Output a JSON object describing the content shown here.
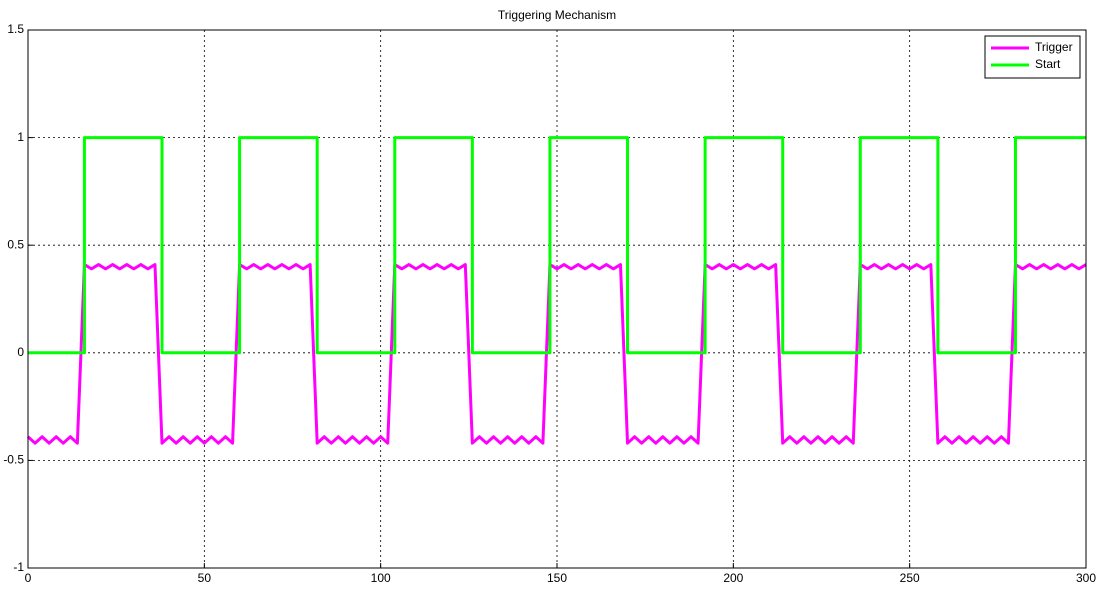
{
  "chart_data": {
    "type": "line",
    "title": "Triggering Mechanism",
    "xlim": [
      0,
      300
    ],
    "ylim": [
      -1,
      1.5
    ],
    "xticks": [
      0,
      50,
      100,
      150,
      200,
      250,
      300
    ],
    "yticks": [
      -1,
      -0.5,
      0,
      0.5,
      1,
      1.5
    ],
    "grid": true,
    "legend": "upper right",
    "series": [
      {
        "name": "Trigger",
        "color": "#ff00ff",
        "x": [
          0,
          2,
          4,
          6,
          8,
          10,
          12,
          14,
          16,
          18,
          20,
          22,
          24,
          26,
          28,
          30,
          32,
          34,
          36,
          38,
          40,
          42,
          44,
          46,
          48,
          50,
          52,
          54,
          56,
          58,
          60,
          62,
          64,
          66,
          68,
          70,
          72,
          74,
          76,
          78,
          80,
          82,
          84,
          86,
          88,
          90,
          92,
          94,
          96,
          98,
          100,
          102,
          104,
          106,
          108,
          110,
          112,
          114,
          116,
          118,
          120,
          122,
          124,
          126,
          128,
          130,
          132,
          134,
          136,
          138,
          140,
          142,
          144,
          146,
          148,
          150,
          152,
          154,
          156,
          158,
          160,
          162,
          164,
          166,
          168,
          170,
          172,
          174,
          176,
          178,
          180,
          182,
          184,
          186,
          188,
          190,
          192,
          194,
          196,
          198,
          200,
          202,
          204,
          206,
          208,
          210,
          212,
          214,
          216,
          218,
          220,
          222,
          224,
          226,
          228,
          230,
          232,
          234,
          236,
          238,
          240,
          242,
          244,
          246,
          248,
          250,
          252,
          254,
          256,
          258,
          260,
          262,
          264,
          266,
          268,
          270,
          272,
          274,
          276,
          278,
          280,
          282,
          284,
          286,
          288,
          290,
          292,
          294,
          296,
          298,
          300
        ],
        "values": [
          -0.39,
          -0.42,
          -0.39,
          -0.42,
          -0.39,
          -0.42,
          -0.39,
          -0.42,
          0.41,
          0.39,
          0.41,
          0.39,
          0.41,
          0.39,
          0.41,
          0.39,
          0.41,
          0.39,
          0.41,
          -0.42,
          -0.39,
          -0.42,
          -0.39,
          -0.42,
          -0.39,
          -0.42,
          -0.39,
          -0.42,
          -0.39,
          -0.42,
          0.41,
          0.39,
          0.41,
          0.39,
          0.41,
          0.39,
          0.41,
          0.39,
          0.41,
          0.39,
          0.41,
          -0.42,
          -0.39,
          -0.42,
          -0.39,
          -0.42,
          -0.39,
          -0.42,
          -0.39,
          -0.42,
          -0.39,
          -0.42,
          0.41,
          0.39,
          0.41,
          0.39,
          0.41,
          0.39,
          0.41,
          0.39,
          0.41,
          0.39,
          0.41,
          -0.42,
          -0.39,
          -0.42,
          -0.39,
          -0.42,
          -0.39,
          -0.42,
          -0.39,
          -0.42,
          -0.39,
          -0.42,
          0.41,
          0.39,
          0.41,
          0.39,
          0.41,
          0.39,
          0.41,
          0.39,
          0.41,
          0.39,
          0.41,
          -0.42,
          -0.39,
          -0.42,
          -0.39,
          -0.42,
          -0.39,
          -0.42,
          -0.39,
          -0.42,
          -0.39,
          -0.42,
          0.41,
          0.39,
          0.41,
          0.39,
          0.41,
          0.39,
          0.41,
          0.39,
          0.41,
          0.39,
          0.41,
          -0.42,
          -0.39,
          -0.42,
          -0.39,
          -0.42,
          -0.39,
          -0.42,
          -0.39,
          -0.42,
          -0.39,
          -0.42,
          0.41,
          0.39,
          0.41,
          0.39,
          0.41,
          0.39,
          0.41,
          0.39,
          0.41,
          0.39,
          0.41,
          -0.42,
          -0.39,
          -0.42,
          -0.39,
          -0.42,
          -0.39,
          -0.42,
          -0.39,
          -0.42,
          -0.39,
          -0.42,
          0.41,
          0.39,
          0.41,
          0.39,
          0.41,
          0.39,
          0.41,
          0.39,
          0.41,
          0.39,
          0.41
        ]
      },
      {
        "name": "Start",
        "color": "#00ff00",
        "x": [
          0,
          16,
          16,
          38,
          38,
          60,
          60,
          82,
          82,
          104,
          104,
          126,
          126,
          148,
          148,
          170,
          170,
          192,
          192,
          214,
          214,
          236,
          236,
          258,
          258,
          280,
          280,
          300
        ],
        "values": [
          0,
          0,
          1,
          1,
          0,
          0,
          1,
          1,
          0,
          0,
          1,
          1,
          0,
          0,
          1,
          1,
          0,
          0,
          1,
          1,
          0,
          0,
          1,
          1,
          0,
          0,
          1,
          1
        ]
      }
    ]
  }
}
